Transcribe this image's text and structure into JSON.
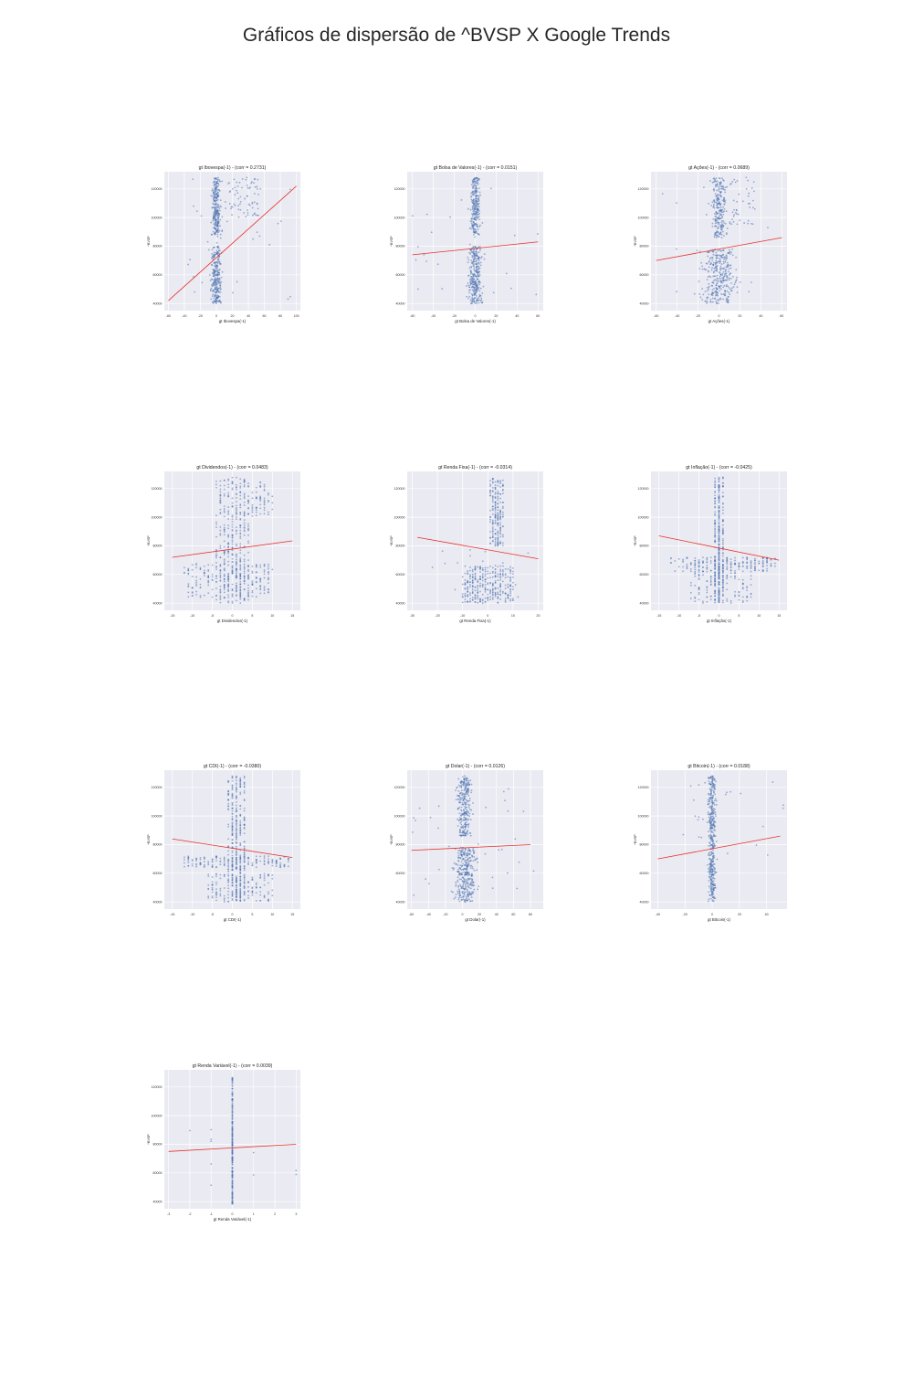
{
  "title": "Gráficos de dispersão de ^BVSP X Google Trends",
  "colors": {
    "point": "#4c72b0",
    "fit": "#e8312b",
    "panel_bg": "#eaeaf2",
    "grid": "#ffffff"
  },
  "chart_data": [
    {
      "type": "scatter",
      "title": "gt Ibovespa(-1) - (corr = 0.2731)",
      "xlabel": "gt Ibovespa(-1)",
      "ylabel": "^BVSP",
      "xlim": [
        -65,
        105
      ],
      "ylim": [
        35000,
        132000
      ],
      "xticks": [
        -60,
        -40,
        -20,
        0,
        20,
        40,
        60,
        80,
        100
      ],
      "yticks": [
        40000,
        60000,
        80000,
        100000,
        120000
      ],
      "fit": [
        [
          -60,
          42000
        ],
        [
          100,
          122000
        ]
      ]
    },
    {
      "type": "scatter",
      "title": "gt Bolsa de Valores(-1) - (corr = 0.0151)",
      "xlabel": "gt Bolsa de Valores(-1)",
      "ylabel": "^BVSP",
      "xlim": [
        -65,
        65
      ],
      "ylim": [
        35000,
        132000
      ],
      "xticks": [
        -60,
        -40,
        -20,
        0,
        20,
        40,
        60
      ],
      "yticks": [
        40000,
        60000,
        80000,
        100000,
        120000
      ],
      "fit": [
        [
          -60,
          74000
        ],
        [
          60,
          83000
        ]
      ]
    },
    {
      "type": "scatter",
      "title": "gt Ações(-1) - (corr = 0.0689)",
      "xlabel": "gt Ações(-1)",
      "ylabel": "^BVSP",
      "xlim": [
        -65,
        65
      ],
      "ylim": [
        35000,
        132000
      ],
      "xticks": [
        -60,
        -40,
        -20,
        0,
        20,
        40,
        60
      ],
      "yticks": [
        40000,
        60000,
        80000,
        100000,
        120000
      ],
      "fit": [
        [
          -60,
          70000
        ],
        [
          60,
          86000
        ]
      ]
    },
    {
      "type": "scatter",
      "title": "gt Dividendos(-1) - (corr = 0.0483)",
      "xlabel": "gt Dividendos(-1)",
      "ylabel": "^BVSP",
      "xlim": [
        -17,
        17
      ],
      "ylim": [
        35000,
        132000
      ],
      "xticks": [
        -15,
        -10,
        -5,
        0,
        5,
        10,
        15
      ],
      "yticks": [
        40000,
        60000,
        80000,
        100000,
        120000
      ],
      "fit": [
        [
          -15,
          72000
        ],
        [
          15,
          83500
        ]
      ]
    },
    {
      "type": "scatter",
      "title": "gt Renda Fixa(-1) - (corr = -0.0314)",
      "xlabel": "gt Renda Fixa(-1)",
      "ylabel": "^BVSP",
      "xlim": [
        -32,
        22
      ],
      "ylim": [
        35000,
        132000
      ],
      "xticks": [
        -30,
        -20,
        -10,
        0,
        10,
        20
      ],
      "yticks": [
        40000,
        60000,
        80000,
        100000,
        120000
      ],
      "fit": [
        [
          -28,
          86000
        ],
        [
          20,
          71000
        ]
      ]
    },
    {
      "type": "scatter",
      "title": "gt Inflação(-1) - (corr = -0.0425)",
      "xlabel": "gt Inflação(-1)",
      "ylabel": "^BVSP",
      "xlim": [
        -17,
        17
      ],
      "ylim": [
        35000,
        132000
      ],
      "xticks": [
        -15,
        -10,
        -5,
        0,
        5,
        10,
        15
      ],
      "yticks": [
        40000,
        60000,
        80000,
        100000,
        120000
      ],
      "fit": [
        [
          -15,
          87000
        ],
        [
          15,
          70000
        ]
      ]
    },
    {
      "type": "scatter",
      "title": "gt CDI(-1) - (corr = -0.0380)",
      "xlabel": "gt CDI(-1)",
      "ylabel": "^BVSP",
      "xlim": [
        -17,
        17
      ],
      "ylim": [
        35000,
        132000
      ],
      "xticks": [
        -15,
        -10,
        -5,
        0,
        5,
        10,
        15
      ],
      "yticks": [
        40000,
        60000,
        80000,
        100000,
        120000
      ],
      "fit": [
        [
          -15,
          84000
        ],
        [
          15,
          71000
        ]
      ]
    },
    {
      "type": "scatter",
      "title": "gt Dolar(-1) - (corr = 0.0126)",
      "xlabel": "gt Dolar(-1)",
      "ylabel": "^BVSP",
      "xlim": [
        -65,
        95
      ],
      "ylim": [
        35000,
        132000
      ],
      "xticks": [
        -60,
        -40,
        -20,
        0,
        20,
        40,
        60,
        80
      ],
      "yticks": [
        40000,
        60000,
        80000,
        100000,
        120000
      ],
      "fit": [
        [
          -60,
          76000
        ],
        [
          80,
          80000
        ]
      ]
    },
    {
      "type": "scatter",
      "title": "gt Bitcoin(-1) - (corr = 0.0188)",
      "xlabel": "gt Bitcoin(-1)",
      "ylabel": "^BVSP",
      "xlim": [
        -45,
        55
      ],
      "ylim": [
        35000,
        132000
      ],
      "xticks": [
        -40,
        -20,
        0,
        20,
        40
      ],
      "yticks": [
        40000,
        60000,
        80000,
        100000,
        120000
      ],
      "fit": [
        [
          -40,
          70000
        ],
        [
          50,
          86000
        ]
      ]
    },
    {
      "type": "scatter",
      "title": "gt Renda Variável(-1) - (corr = 0.0039)",
      "xlabel": "gt Renda Variável(-1)",
      "ylabel": "^BVSP",
      "xlim": [
        -3.2,
        3.2
      ],
      "ylim": [
        35000,
        132000
      ],
      "xticks": [
        -3,
        -2,
        -1,
        0,
        1,
        2,
        3
      ],
      "yticks": [
        40000,
        60000,
        80000,
        100000,
        120000
      ],
      "fit": [
        [
          -3,
          75000
        ],
        [
          3,
          80000
        ]
      ]
    }
  ]
}
